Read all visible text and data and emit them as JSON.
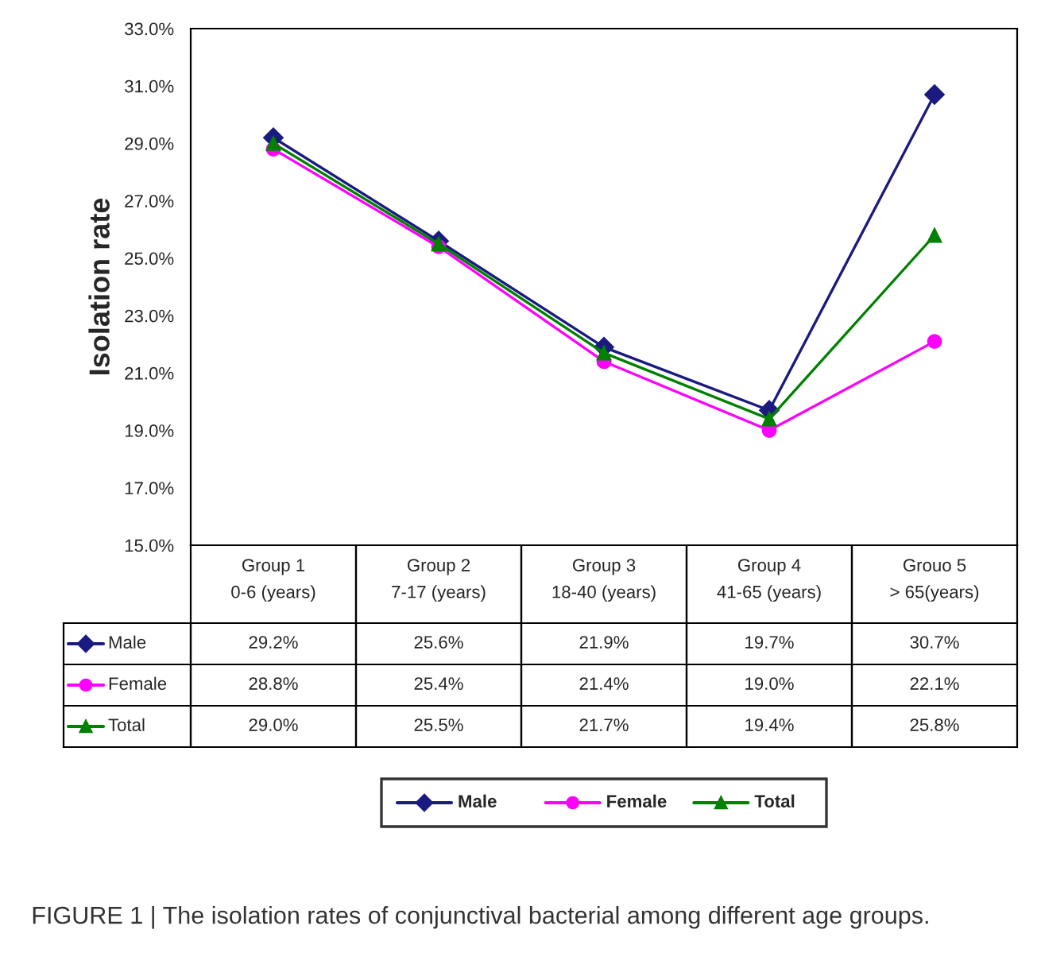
{
  "chart_data": {
    "type": "line",
    "ylabel": "Isolation rate",
    "categories": [
      "Group 1\n0-6 (years)",
      "Group 2\n7-17 (years)",
      "Group 3\n18-40 (years)",
      "Group 4\n41-65 (years)",
      "Grouo 5\n> 65(years)"
    ],
    "series": [
      {
        "name": "Male",
        "color": "#1a1a80",
        "marker": "diamond",
        "values": [
          29.2,
          25.6,
          21.9,
          19.7,
          30.7
        ],
        "value_labels": [
          "29.2%",
          "25.6%",
          "21.9%",
          "19.7%",
          "30.7%"
        ]
      },
      {
        "name": "Female",
        "color": "#ff00ff",
        "marker": "circle",
        "values": [
          28.8,
          25.4,
          21.4,
          19.0,
          22.1
        ],
        "value_labels": [
          "28.8%",
          "25.4%",
          "21.4%",
          "19.0%",
          "22.1%"
        ]
      },
      {
        "name": "Total",
        "color": "#008000",
        "marker": "triangle",
        "values": [
          29.0,
          25.5,
          21.7,
          19.4,
          25.8
        ],
        "value_labels": [
          "29.0%",
          "25.5%",
          "21.7%",
          "19.4%",
          "25.8%"
        ]
      }
    ],
    "ylim": [
      15,
      33
    ],
    "yticks": [
      {
        "value": 15,
        "label": "15.0%"
      },
      {
        "value": 17,
        "label": "17.0%"
      },
      {
        "value": 19,
        "label": "19.0%"
      },
      {
        "value": 21,
        "label": "21.0%"
      },
      {
        "value": 23,
        "label": "23.0%"
      },
      {
        "value": 25,
        "label": "25.0%"
      },
      {
        "value": 27,
        "label": "27.0%"
      },
      {
        "value": 29,
        "label": "29.0%"
      },
      {
        "value": 31,
        "label": "31.0%"
      },
      {
        "value": 33,
        "label": "33.0%"
      }
    ],
    "legend": "bottom",
    "line_style": "solid",
    "annotations": [
      "FIGURE 1 | The isolation rates of conjunctival bacterial among different age groups."
    ]
  }
}
